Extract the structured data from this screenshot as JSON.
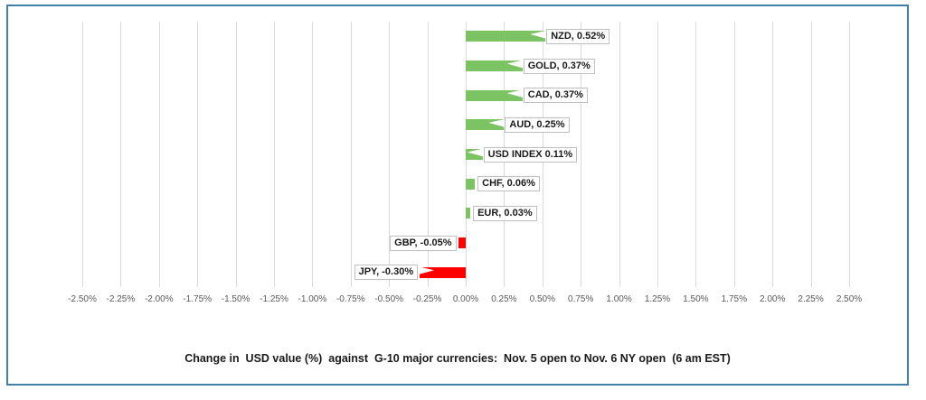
{
  "chart_data": {
    "type": "bar",
    "orientation": "horizontal",
    "title": "Change in  USD value (%)  against  G-10 major currencies:  Nov. 5 open to Nov. 6 NY open  (6 am EST)",
    "categories": [
      "NZD",
      "GOLD",
      "CAD",
      "AUD",
      "USD INDEX",
      "CHF",
      "EUR",
      "GBP",
      "JPY"
    ],
    "values": [
      0.52,
      0.37,
      0.37,
      0.25,
      0.11,
      0.06,
      0.03,
      -0.05,
      -0.3
    ],
    "data_labels": [
      "NZD, 0.52%",
      "GOLD, 0.37%",
      "CAD, 0.37%",
      "AUD, 0.25%",
      "USD INDEX 0.11%",
      "CHF, 0.06%",
      "EUR, 0.03%",
      "GBP, -0.05%",
      "JPY, -0.30%"
    ],
    "x_ticks": [
      "-2.50%",
      "-2.25%",
      "-2.00%",
      "-1.75%",
      "-1.50%",
      "-1.25%",
      "-1.00%",
      "-0.75%",
      "-0.50%",
      "-0.25%",
      "0.00%",
      "0.25%",
      "0.50%",
      "0.75%",
      "1.00%",
      "1.25%",
      "1.50%",
      "1.75%",
      "2.00%",
      "2.25%",
      "2.50%"
    ],
    "xlim": [
      -2.5,
      2.5
    ],
    "grid": true,
    "legend": "none",
    "colors": {
      "positive_bar": "#7cc363",
      "negative_bar": "#fe0000",
      "gridline": "#d9d9d9",
      "tick_text": "#595959",
      "label_border": "#bfbfbf",
      "label_text": "#1a1a1a",
      "frame_border": "#4380a8"
    }
  }
}
